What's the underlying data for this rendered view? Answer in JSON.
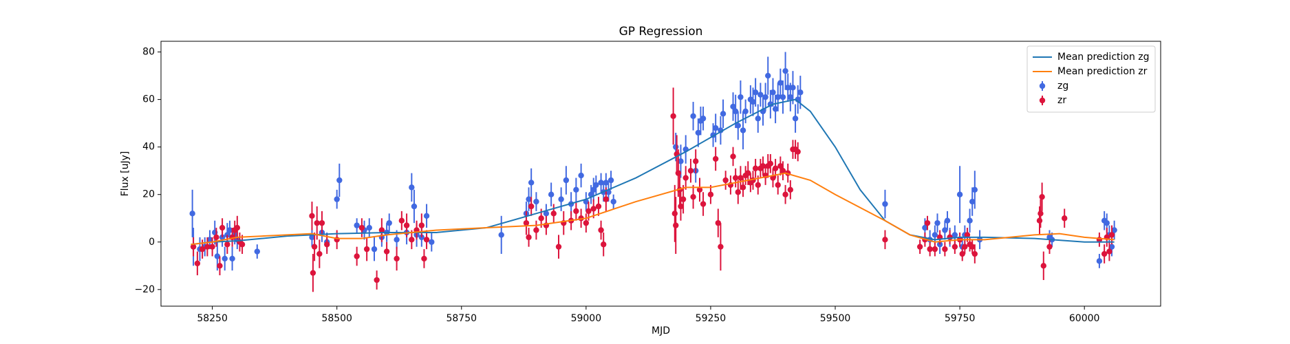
{
  "chart_data": {
    "type": "line",
    "title": "GP Regression",
    "xlabel": "MJD",
    "ylabel": "Flux [uJy]",
    "xlim": [
      58147,
      60153
    ],
    "ylim": [
      -27,
      84.5
    ],
    "xticks": [
      58250,
      58500,
      58750,
      59000,
      59250,
      59500,
      59750,
      60000
    ],
    "yticks": [
      {
        "value": -20,
        "label": "−20"
      },
      0,
      20,
      40,
      60,
      80
    ],
    "legend": "upper right",
    "series": [
      {
        "name": "zg",
        "type": "errorbar",
        "color": "#4169e1",
        "x": [
          58210,
          58212,
          58225,
          58235,
          58245,
          58255,
          58260,
          58270,
          58275,
          58280,
          58285,
          58290,
          58295,
          58300,
          58340,
          58450,
          58470,
          58480,
          58500,
          58505,
          58540,
          58555,
          58565,
          58575,
          58590,
          58600,
          58605,
          58620,
          58640,
          58650,
          58655,
          58660,
          58670,
          58680,
          58690,
          58830,
          58880,
          58885,
          58890,
          58900,
          58920,
          58930,
          58950,
          58960,
          58970,
          58980,
          58990,
          59000,
          59010,
          59015,
          59020,
          59030,
          59035,
          59040,
          59045,
          59050,
          59055,
          59180,
          59190,
          59200,
          59215,
          59220,
          59225,
          59230,
          59235,
          59255,
          59260,
          59270,
          59275,
          59295,
          59300,
          59305,
          59310,
          59315,
          59320,
          59330,
          59335,
          59340,
          59345,
          59350,
          59355,
          59360,
          59365,
          59370,
          59375,
          59380,
          59385,
          59390,
          59395,
          59400,
          59405,
          59410,
          59415,
          59420,
          59425,
          59430,
          59600,
          59680,
          59690,
          59700,
          59705,
          59710,
          59720,
          59725,
          59730,
          59740,
          59750,
          59755,
          59760,
          59770,
          59775,
          59780,
          59790,
          59930,
          59935,
          60030,
          60040,
          60045,
          60050,
          60055,
          60060
        ],
        "values": [
          12,
          -2,
          -3,
          -2,
          1,
          4,
          -6,
          2,
          -7,
          3,
          5,
          -7,
          3,
          1,
          -4,
          2,
          4,
          0,
          18,
          26,
          7,
          5,
          6,
          -3,
          2,
          4,
          8,
          1,
          4,
          23,
          15,
          3,
          2,
          11,
          0,
          3,
          12,
          18,
          25,
          17,
          12,
          20,
          18,
          26,
          16,
          22,
          28,
          17,
          20,
          22,
          24,
          25,
          21,
          25,
          21,
          26,
          17,
          40,
          34,
          39,
          53,
          30,
          46,
          51,
          52,
          45,
          48,
          47,
          54,
          57,
          55,
          49,
          61,
          47,
          55,
          60,
          59,
          63,
          52,
          62,
          55,
          61,
          70,
          58,
          63,
          56,
          61,
          67,
          61,
          72,
          65,
          61,
          65,
          52,
          60,
          63,
          16,
          6,
          1,
          3,
          8,
          -1,
          5,
          9,
          2,
          3,
          20,
          -2,
          3,
          9,
          17,
          22,
          1,
          2,
          1,
          -8,
          9,
          8,
          3,
          -2,
          5
        ],
        "errors": [
          10,
          8,
          5,
          4,
          4,
          5,
          6,
          4,
          5,
          5,
          4,
          5,
          4,
          4,
          3,
          4,
          4,
          4,
          4,
          7,
          3,
          4,
          4,
          5,
          4,
          4,
          4,
          4,
          5,
          6,
          7,
          5,
          4,
          5,
          4,
          8,
          5,
          5,
          6,
          4,
          4,
          5,
          5,
          6,
          5,
          5,
          5,
          4,
          4,
          5,
          4,
          4,
          4,
          4,
          4,
          4,
          3,
          6,
          7,
          6,
          6,
          5,
          6,
          6,
          5,
          5,
          6,
          6,
          6,
          6,
          7,
          6,
          7,
          8,
          5,
          6,
          6,
          6,
          6,
          5,
          6,
          6,
          8,
          6,
          6,
          6,
          6,
          6,
          7,
          8,
          6,
          6,
          7,
          6,
          6,
          7,
          6,
          4,
          4,
          4,
          4,
          4,
          4,
          4,
          4,
          4,
          12,
          4,
          4,
          5,
          6,
          8,
          4,
          3,
          3,
          3,
          4,
          4,
          4,
          4,
          4
        ]
      },
      {
        "name": "zr",
        "type": "errorbar",
        "color": "#dc143c",
        "x": [
          58212,
          58220,
          58230,
          58240,
          58250,
          58258,
          58265,
          58270,
          58280,
          58290,
          58295,
          58300,
          58305,
          58310,
          58450,
          58452,
          58455,
          58460,
          58465,
          58470,
          58480,
          58500,
          58540,
          58550,
          58560,
          58580,
          58590,
          58600,
          58620,
          58630,
          58640,
          58650,
          58660,
          58670,
          58675,
          58680,
          58880,
          58885,
          58890,
          58900,
          58910,
          58920,
          58935,
          58945,
          58955,
          58970,
          58980,
          58990,
          59000,
          59005,
          59015,
          59025,
          59030,
          59035,
          59040,
          59175,
          59178,
          59180,
          59182,
          59185,
          59188,
          59190,
          59195,
          59200,
          59210,
          59215,
          59220,
          59228,
          59235,
          59250,
          59260,
          59265,
          59270,
          59280,
          59290,
          59295,
          59300,
          59305,
          59310,
          59315,
          59320,
          59325,
          59330,
          59335,
          59340,
          59345,
          59350,
          59355,
          59360,
          59365,
          59370,
          59375,
          59380,
          59385,
          59390,
          59395,
          59400,
          59405,
          59410,
          59415,
          59420,
          59425,
          59600,
          59670,
          59680,
          59685,
          59690,
          59700,
          59710,
          59720,
          59730,
          59740,
          59750,
          59755,
          59760,
          59765,
          59770,
          59775,
          59780,
          59910,
          59912,
          59915,
          59918,
          59930,
          59960,
          60030,
          60040,
          60045,
          60050,
          60055
        ],
        "values": [
          -2,
          -9,
          -3,
          -2,
          -2,
          2,
          -10,
          6,
          -1,
          2,
          5,
          6,
          0,
          -1,
          11,
          -13,
          -2,
          8,
          -5,
          8,
          -1,
          1,
          -6,
          6,
          -3,
          -16,
          5,
          -4,
          -7,
          9,
          7,
          1,
          5,
          7,
          -7,
          1,
          8,
          2,
          15,
          5,
          10,
          7,
          12,
          -2,
          8,
          9,
          13,
          10,
          8,
          13,
          14,
          15,
          5,
          -1,
          18,
          53,
          12,
          7,
          37,
          29,
          22,
          15,
          18,
          27,
          30,
          19,
          34,
          22,
          16,
          20,
          35,
          8,
          -2,
          26,
          24,
          36,
          27,
          21,
          27,
          23,
          28,
          29,
          25,
          26,
          31,
          24,
          31,
          32,
          28,
          32,
          33,
          27,
          31,
          24,
          32,
          30,
          20,
          29,
          22,
          39,
          39,
          38,
          1,
          -2,
          1,
          8,
          -3,
          -3,
          2,
          -3,
          2,
          -2,
          1,
          -5,
          -2,
          3,
          -1,
          -2,
          -5,
          9,
          12,
          19,
          -10,
          -2,
          10,
          1,
          -5,
          2,
          -4,
          3
        ],
        "errors": [
          4,
          5,
          4,
          4,
          4,
          4,
          4,
          4,
          4,
          4,
          4,
          5,
          4,
          4,
          6,
          8,
          6,
          7,
          6,
          5,
          4,
          4,
          4,
          4,
          5,
          4,
          5,
          4,
          5,
          4,
          5,
          4,
          4,
          5,
          4,
          4,
          5,
          4,
          4,
          4,
          4,
          4,
          4,
          5,
          5,
          4,
          4,
          4,
          4,
          4,
          4,
          4,
          4,
          5,
          5,
          12,
          12,
          12,
          8,
          10,
          8,
          6,
          6,
          5,
          5,
          5,
          5,
          5,
          5,
          4,
          5,
          6,
          10,
          4,
          4,
          4,
          4,
          5,
          5,
          4,
          4,
          5,
          4,
          4,
          4,
          4,
          4,
          4,
          4,
          5,
          4,
          4,
          4,
          4,
          4,
          4,
          4,
          4,
          4,
          4,
          4,
          4,
          4,
          3,
          3,
          3,
          3,
          3,
          3,
          3,
          3,
          3,
          3,
          3,
          3,
          3,
          3,
          3,
          4,
          6,
          6,
          6,
          6,
          3,
          4,
          3,
          4,
          4,
          4,
          4
        ]
      },
      {
        "name": "Mean prediction zg",
        "type": "line",
        "color": "#1f77b4",
        "x": [
          58207,
          58250,
          58300,
          58400,
          58500,
          58600,
          58700,
          58800,
          58900,
          59000,
          59100,
          59200,
          59300,
          59375,
          59420,
          59450,
          59500,
          59550,
          59600,
          59650,
          59700,
          59750,
          59800,
          59900,
          60000,
          60060
        ],
        "values": [
          -1,
          0,
          0.5,
          2.5,
          3.5,
          4,
          4,
          6,
          12,
          18,
          27,
          38,
          50,
          58,
          60,
          55,
          40,
          22,
          9,
          3,
          1,
          2,
          2,
          1.5,
          0,
          0
        ]
      },
      {
        "name": "Mean prediction zr",
        "type": "line",
        "color": "#ff7f0e",
        "x": [
          58207,
          58250,
          58300,
          58400,
          58450,
          58500,
          58550,
          58600,
          58700,
          58800,
          58900,
          59000,
          59100,
          59200,
          59250,
          59300,
          59400,
          59450,
          59500,
          59600,
          59650,
          59700,
          59750,
          59800,
          59900,
          59950,
          60000,
          60060
        ],
        "values": [
          -1,
          0,
          2,
          3,
          3.5,
          1.5,
          1.5,
          3,
          5,
          6,
          7,
          10,
          17,
          23,
          23,
          25,
          29,
          26,
          20,
          9,
          3,
          0,
          1,
          1,
          3,
          3.5,
          2,
          1
        ]
      }
    ]
  }
}
